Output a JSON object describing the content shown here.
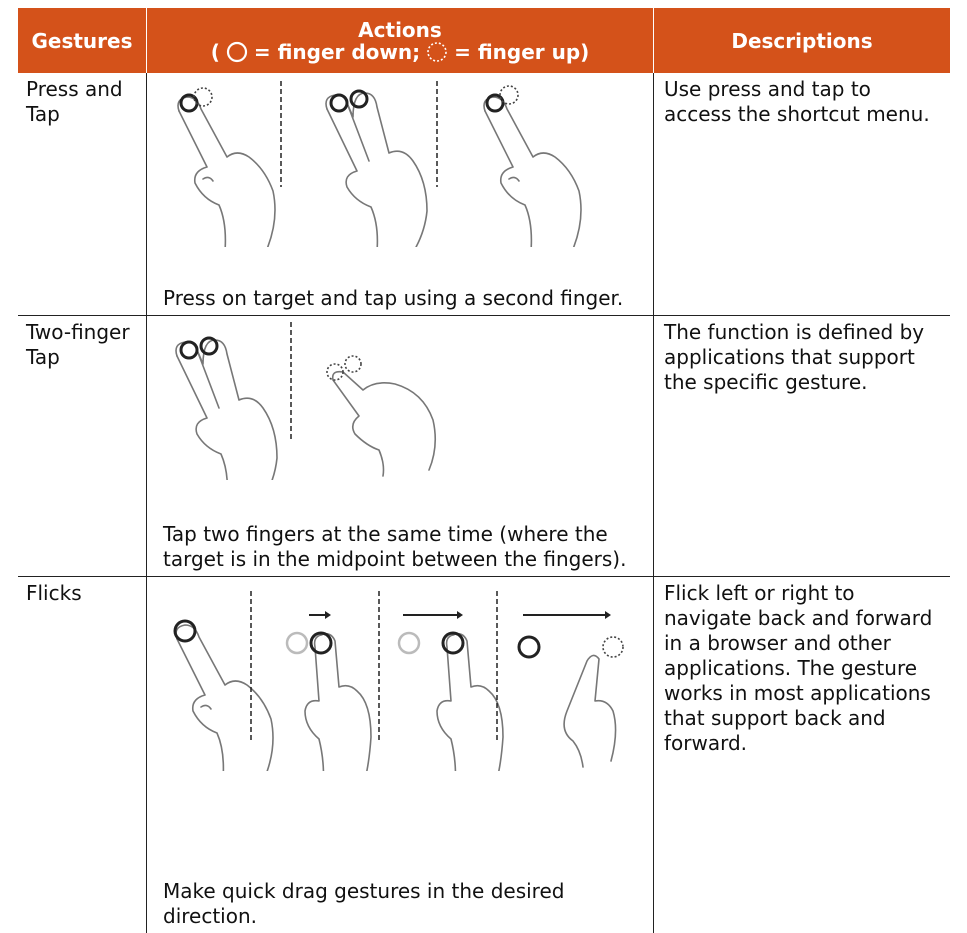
{
  "header": {
    "gestures": "Gestures",
    "actions": "Actions",
    "legend_open": "(",
    "legend_down": "= finger down;",
    "legend_up": "= finger up)",
    "descriptions": "Descriptions"
  },
  "rows": [
    {
      "gesture": "Press and Tap",
      "action": "Press on target and tap using a second finger.",
      "description": "Use press and tap to access the shortcut menu."
    },
    {
      "gesture": "Two-finger Tap",
      "action": "Tap two fingers at the same time (where the target is in the midpoint between the fingers).",
      "description": "The function is defined by applications that support the specific gesture."
    },
    {
      "gesture": "Flicks",
      "action": "Make quick drag gestures in the desired direction.",
      "description": "Flick left or right to navigate back and forward in a browser and other applications. The gesture works in most applications that support back and forward."
    }
  ]
}
